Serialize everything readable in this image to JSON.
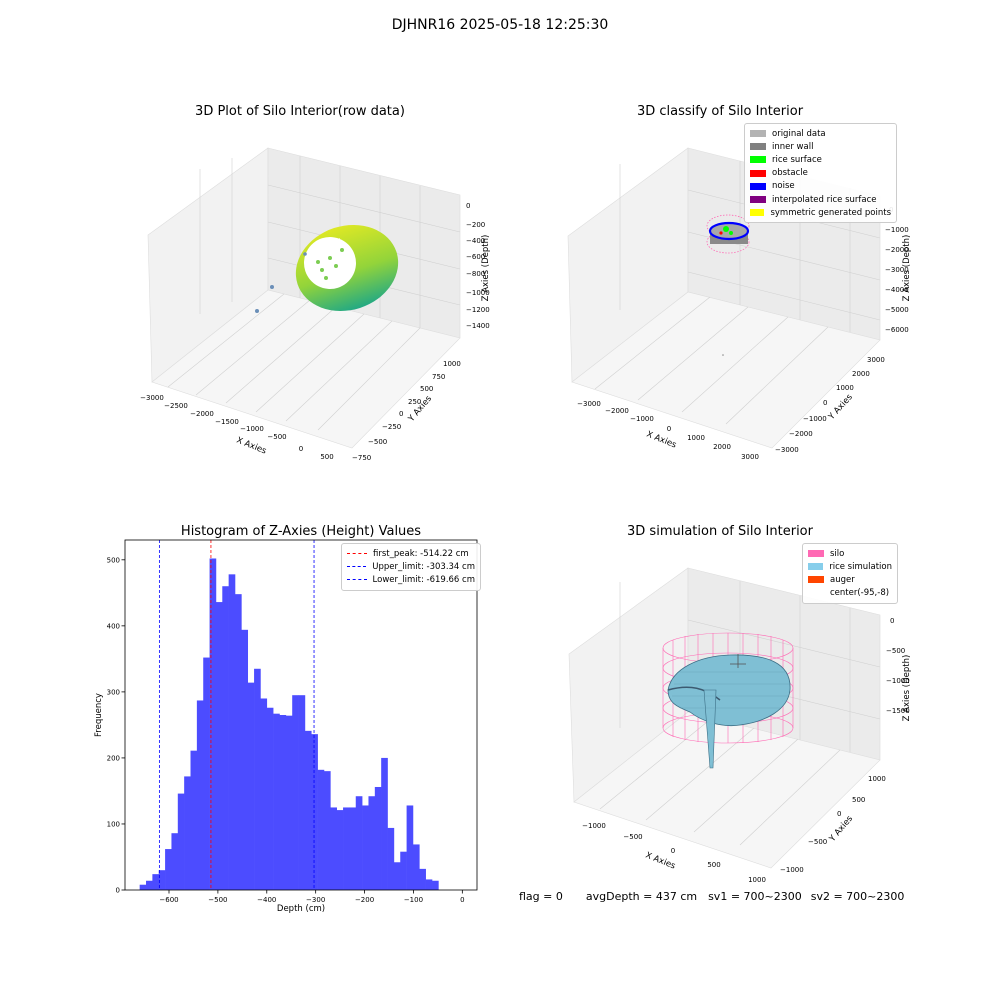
{
  "suptitle": "DJHNR16 2025-05-18 12:25:30",
  "footer": {
    "flag": "flag = 0",
    "avg_depth": "avgDepth = 437 cm",
    "sv1": "sv1 = 700~2300",
    "sv2": "sv2 = 700~2300"
  },
  "chart_data": [
    {
      "type": "scatter",
      "title": "3D Plot of Silo Interior(row data)",
      "xlabel": "X Axies",
      "ylabel": "Y Axies",
      "zlabel": "Z Axies (Depth)",
      "x_ticks": [
        "−3000",
        "−2500",
        "−2000",
        "−1500",
        "−1000",
        "−500",
        "0",
        "500"
      ],
      "y_ticks": [
        "−750",
        "−500",
        "−250",
        "0",
        "250",
        "500",
        "750",
        "1000"
      ],
      "z_ticks": [
        "0",
        "−200",
        "−400",
        "−600",
        "−800",
        "−1000",
        "−1200",
        "−1400"
      ],
      "colors": {
        "surface_light": "#d9e825",
        "surface_dark": "#22a884",
        "outlier": "#6b8fb8"
      }
    },
    {
      "type": "scatter",
      "title": "3D classify of Silo Interior",
      "xlabel": "X Axies",
      "ylabel": "Y Axies",
      "zlabel": "Z Axies (Depth)",
      "x_ticks": [
        "−3000",
        "−2000",
        "−1000",
        "0",
        "1000",
        "2000",
        "3000"
      ],
      "y_ticks": [
        "−3000",
        "−2000",
        "−1000",
        "0",
        "1000",
        "2000",
        "3000"
      ],
      "z_ticks": [
        "0",
        "−1000",
        "−2000",
        "−3000",
        "−4000",
        "−5000",
        "−6000"
      ],
      "legend": [
        {
          "label": "original data",
          "color": "#b3b3b3"
        },
        {
          "label": "inner wall",
          "color": "#808080"
        },
        {
          "label": "rice surface",
          "color": "#00ff00"
        },
        {
          "label": "obstacle",
          "color": "#ff0000"
        },
        {
          "label": "noise",
          "color": "#0000ff"
        },
        {
          "label": "interpolated rice surface",
          "color": "#800080"
        },
        {
          "label": "symmetric generated points",
          "color": "#ffff00"
        }
      ],
      "legend_placement": "top-right"
    },
    {
      "type": "bar",
      "title": "Histogram of Z-Axies (Height) Values",
      "xlabel": "Depth (cm)",
      "ylabel": "Frequency",
      "xlim": [
        -690,
        30
      ],
      "ylim": [
        0,
        530
      ],
      "x_ticks": [
        -600,
        -500,
        -400,
        -300,
        -200,
        -100,
        0
      ],
      "y_ticks": [
        0,
        100,
        200,
        300,
        400,
        500
      ],
      "bin_start": -660,
      "bin_width": 13,
      "values": [
        8,
        14,
        24,
        30,
        62,
        86,
        146,
        172,
        211,
        287,
        352,
        502,
        436,
        460,
        478,
        448,
        394,
        314,
        335,
        290,
        276,
        267,
        265,
        264,
        295,
        295,
        241,
        236,
        182,
        180,
        125,
        121,
        125,
        125,
        142,
        128,
        142,
        156,
        200,
        94,
        42,
        58,
        128,
        69,
        32,
        16,
        14
      ],
      "bar_color": "#4c4cff",
      "vlines": [
        {
          "label": "first_peak: -514.22 cm",
          "x": -514.22,
          "color": "#ff0000"
        },
        {
          "label": "Upper_limit: -303.34 cm",
          "x": -303.34,
          "color": "#0000ff"
        },
        {
          "label": "Lower_limit: -619.66 cm",
          "x": -619.66,
          "color": "#0000ff"
        }
      ],
      "legend_placement": "top-right"
    },
    {
      "type": "surface",
      "title": "3D simulation of Silo Interior",
      "xlabel": "X Axies",
      "ylabel": "Y Axies",
      "zlabel": "Z Axies (Depth)",
      "x_ticks": [
        "−1000",
        "−500",
        "0",
        "500",
        "1000"
      ],
      "y_ticks": [
        "−1000",
        "−500",
        "0",
        "500",
        "1000"
      ],
      "z_ticks": [
        "0",
        "−500",
        "−1000",
        "−1500"
      ],
      "legend": [
        {
          "label": "silo",
          "color": "#ff69b4"
        },
        {
          "label": "rice simulation",
          "color": "#87ceeb"
        },
        {
          "label": "auger",
          "color": "#ff4500"
        },
        {
          "label": "center(-95,-8)",
          "color": "#ffffff"
        }
      ],
      "legend_placement": "top-right"
    }
  ]
}
